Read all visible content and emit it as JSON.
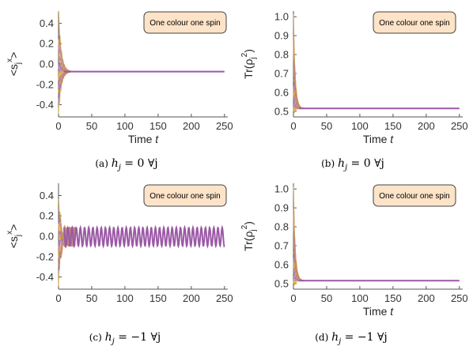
{
  "chart_data": [
    {
      "type": "line",
      "panel": "a",
      "caption": "(a) h_j = 0 ∀j",
      "caption_parts": {
        "label": "(a)",
        "h": "h",
        "sub": "j",
        "rest": "= 0 ∀j"
      },
      "legend": "One colour one spin",
      "ylabel_parts": {
        "pre": "<s",
        "sub": "j",
        "sup": "x",
        "post": ">"
      },
      "xlabel": "Time t",
      "xlabel_parts": {
        "text": "Time",
        "var": "t"
      },
      "xlim": [
        0,
        255
      ],
      "ylim": [
        -0.52,
        0.52
      ],
      "xticks": [
        0,
        50,
        100,
        150,
        200,
        250
      ],
      "yticks": [
        -0.4,
        -0.2,
        0.0,
        0.2,
        0.4
      ],
      "steady_value": -0.075,
      "oscillation_amplitude": 0.0,
      "transient_range": [
        -0.49,
        0.5
      ],
      "transient_decay_time": 12,
      "line_color": "#9b59a6",
      "transient_colors": [
        "#e6b422",
        "#c97fb0",
        "#8a6fb8",
        "#d4a13a",
        "#b46aa6"
      ]
    },
    {
      "type": "line",
      "panel": "b",
      "caption": "(b) h_j = 0 ∀j",
      "caption_parts": {
        "label": "(b)",
        "h": "h",
        "sub": "j",
        "rest": "= 0 ∀j"
      },
      "legend": "One colour one spin",
      "ylabel_parts": {
        "pre": "Tr(ρ",
        "sub": "j",
        "sup": "2",
        "post": ")"
      },
      "xlabel": "Time t",
      "xlabel_parts": {
        "text": "Time",
        "var": "t"
      },
      "xlim": [
        0,
        255
      ],
      "ylim": [
        0.47,
        1.03
      ],
      "xticks": [
        0,
        50,
        100,
        150,
        200,
        250
      ],
      "yticks": [
        0.5,
        0.6,
        0.7,
        0.8,
        0.9,
        1.0
      ],
      "steady_value": 0.515,
      "oscillation_amplitude": 0.0,
      "transient_range": [
        0.5,
        1.0
      ],
      "transient_decay_time": 8,
      "line_color": "#9b59a6",
      "transient_colors": [
        "#e6b422",
        "#c97fb0",
        "#8a6fb8",
        "#d4a13a",
        "#b46aa6"
      ]
    },
    {
      "type": "line",
      "panel": "c",
      "caption": "(c) h_j = −1 ∀j",
      "caption_parts": {
        "label": "(c)",
        "h": "h",
        "sub": "j",
        "rest": "= −1 ∀j"
      },
      "legend": "One colour one spin",
      "ylabel_parts": {
        "pre": "<s",
        "sub": "j",
        "sup": "x",
        "post": ">"
      },
      "xlabel": "",
      "xlim": [
        0,
        255
      ],
      "ylim": [
        -0.52,
        0.52
      ],
      "xticks": [
        0,
        50,
        100,
        150,
        200,
        250
      ],
      "yticks": [
        -0.4,
        -0.2,
        0.0,
        0.2,
        0.4
      ],
      "steady_value": -0.005,
      "oscillation_amplitude": 0.09,
      "oscillation_period": 6.28,
      "transient_range": [
        -0.49,
        0.34
      ],
      "transient_decay_time": 10,
      "line_color": "#9b59a6",
      "transient_colors": [
        "#e6b422",
        "#c97fb0",
        "#8a6fb8",
        "#d4a13a",
        "#b46aa6"
      ]
    },
    {
      "type": "line",
      "panel": "d",
      "caption": "(d) h_j = −1 ∀j",
      "caption_parts": {
        "label": "(d)",
        "h": "h",
        "sub": "j",
        "rest": "= −1 ∀j"
      },
      "legend": "One colour one spin",
      "ylabel_parts": {
        "pre": "Tr(ρ",
        "sub": "j",
        "sup": "2",
        "post": ")"
      },
      "xlabel": "Time t",
      "xlabel_parts": {
        "text": "Time",
        "var": "t"
      },
      "xlim": [
        0,
        255
      ],
      "ylim": [
        0.47,
        1.03
      ],
      "xticks": [
        0,
        50,
        100,
        150,
        200,
        250
      ],
      "yticks": [
        0.5,
        0.6,
        0.7,
        0.8,
        0.9,
        1.0
      ],
      "steady_value": 0.515,
      "oscillation_amplitude": 0.0,
      "transient_range": [
        0.5,
        1.0
      ],
      "transient_decay_time": 8,
      "line_color": "#9b59a6",
      "transient_colors": [
        "#e6b422",
        "#c97fb0",
        "#8a6fb8",
        "#d4a13a",
        "#b46aa6"
      ]
    }
  ],
  "style": {
    "legend_fill": "#fde3c8",
    "legend_stroke": "#444444",
    "axis_color": "#555555"
  }
}
